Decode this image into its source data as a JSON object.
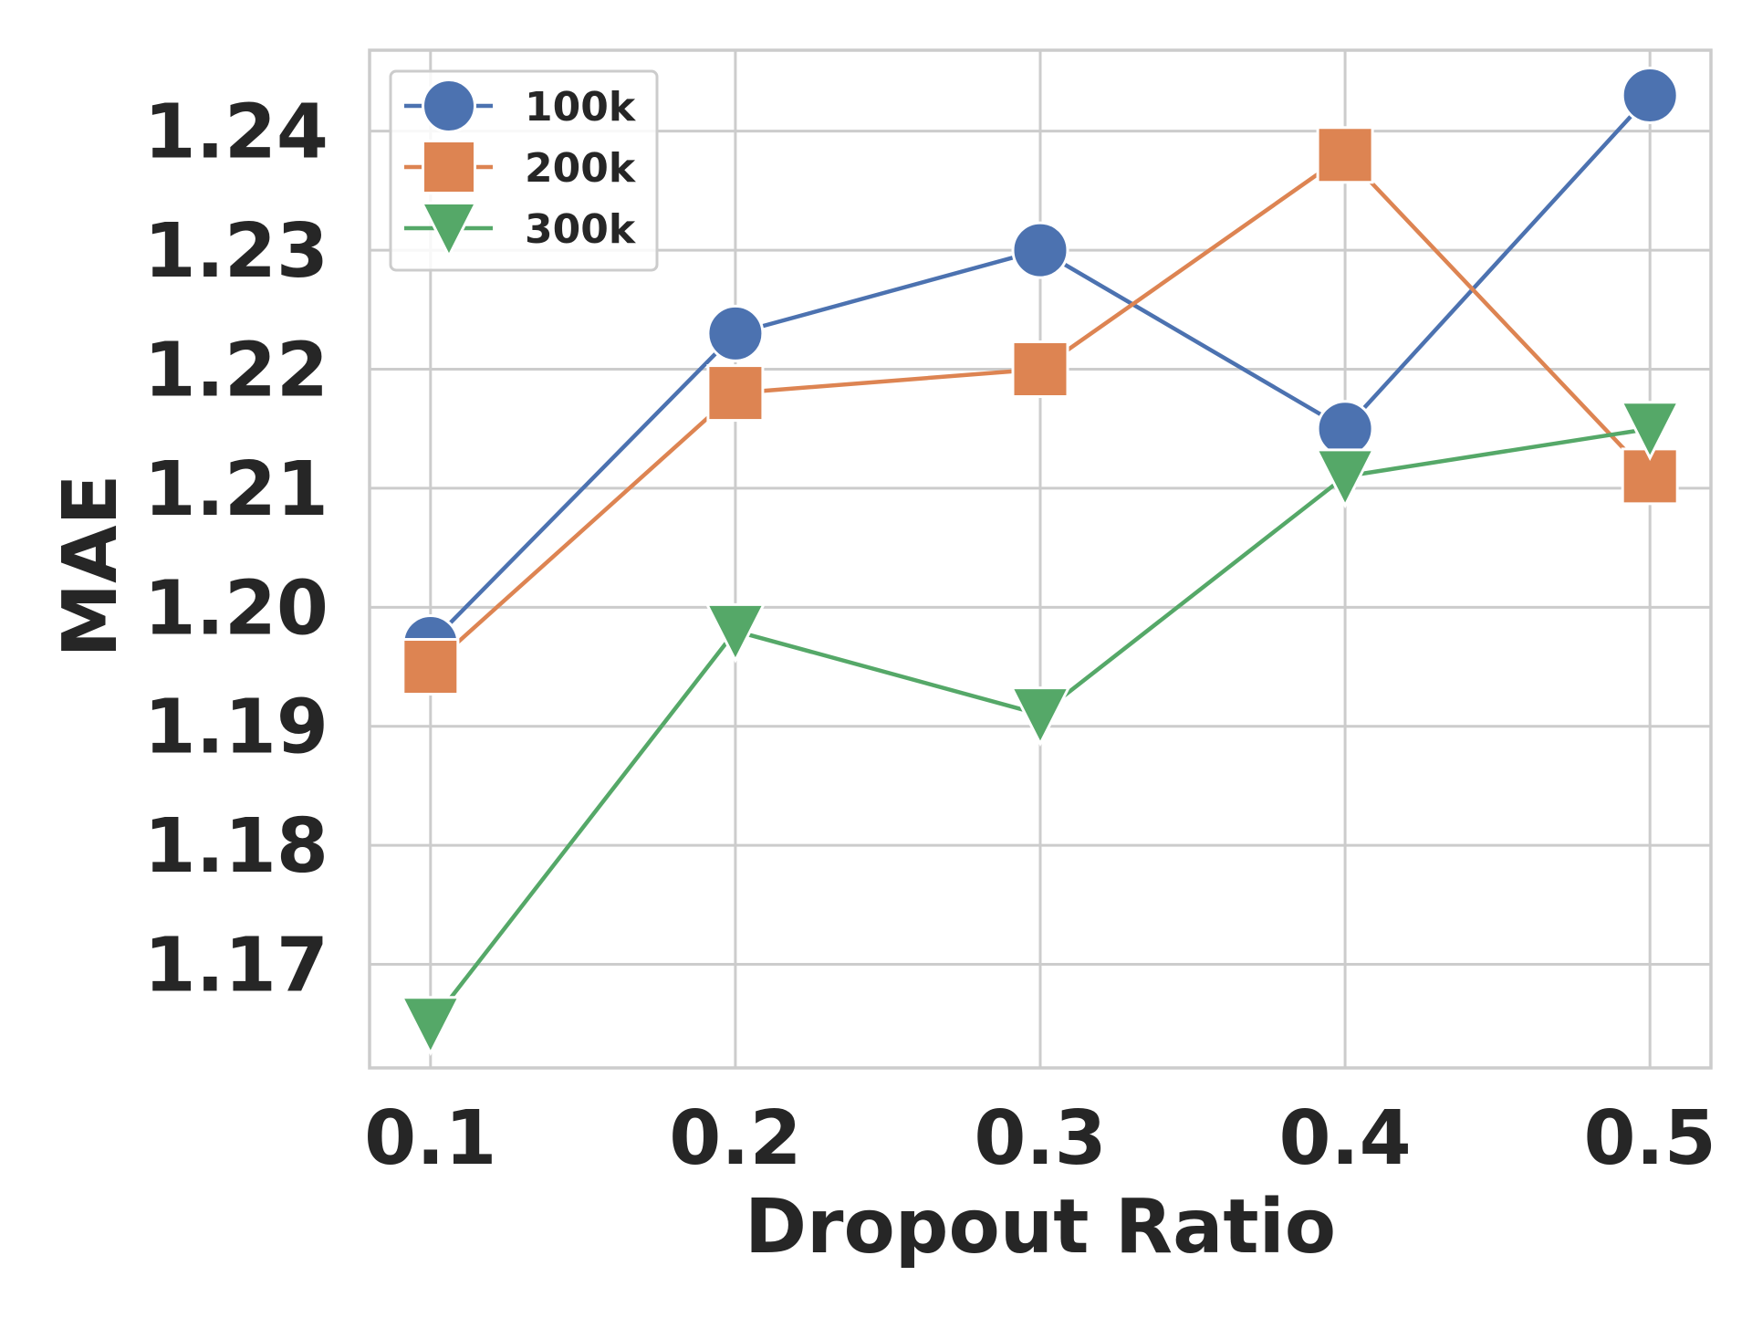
{
  "chart_data": {
    "type": "line",
    "title": "",
    "xlabel": "Dropout Ratio",
    "ylabel": "MAE",
    "x": [
      0.1,
      0.2,
      0.3,
      0.4,
      0.5
    ],
    "x_tick_labels": [
      "0.1",
      "0.2",
      "0.3",
      "0.4",
      "0.5"
    ],
    "y_ticks": [
      1.17,
      1.18,
      1.19,
      1.2,
      1.21,
      1.22,
      1.23,
      1.24
    ],
    "y_tick_labels": [
      "1.17",
      "1.18",
      "1.19",
      "1.20",
      "1.21",
      "1.22",
      "1.23",
      "1.24"
    ],
    "ylim": [
      1.1613,
      1.2468
    ],
    "xlim": [
      0.08,
      0.52
    ],
    "grid": true,
    "legend_position": "top-left",
    "series": [
      {
        "name": "100k",
        "marker": "circle",
        "color": "#4C72B0",
        "values": [
          1.197,
          1.223,
          1.23,
          1.215,
          1.243
        ]
      },
      {
        "name": "200k",
        "marker": "square",
        "color": "#DD8452",
        "values": [
          1.195,
          1.218,
          1.22,
          1.238,
          1.211
        ]
      },
      {
        "name": "300k",
        "marker": "triangle-down",
        "color": "#55A868",
        "values": [
          1.165,
          1.198,
          1.191,
          1.211,
          1.215
        ]
      }
    ]
  }
}
